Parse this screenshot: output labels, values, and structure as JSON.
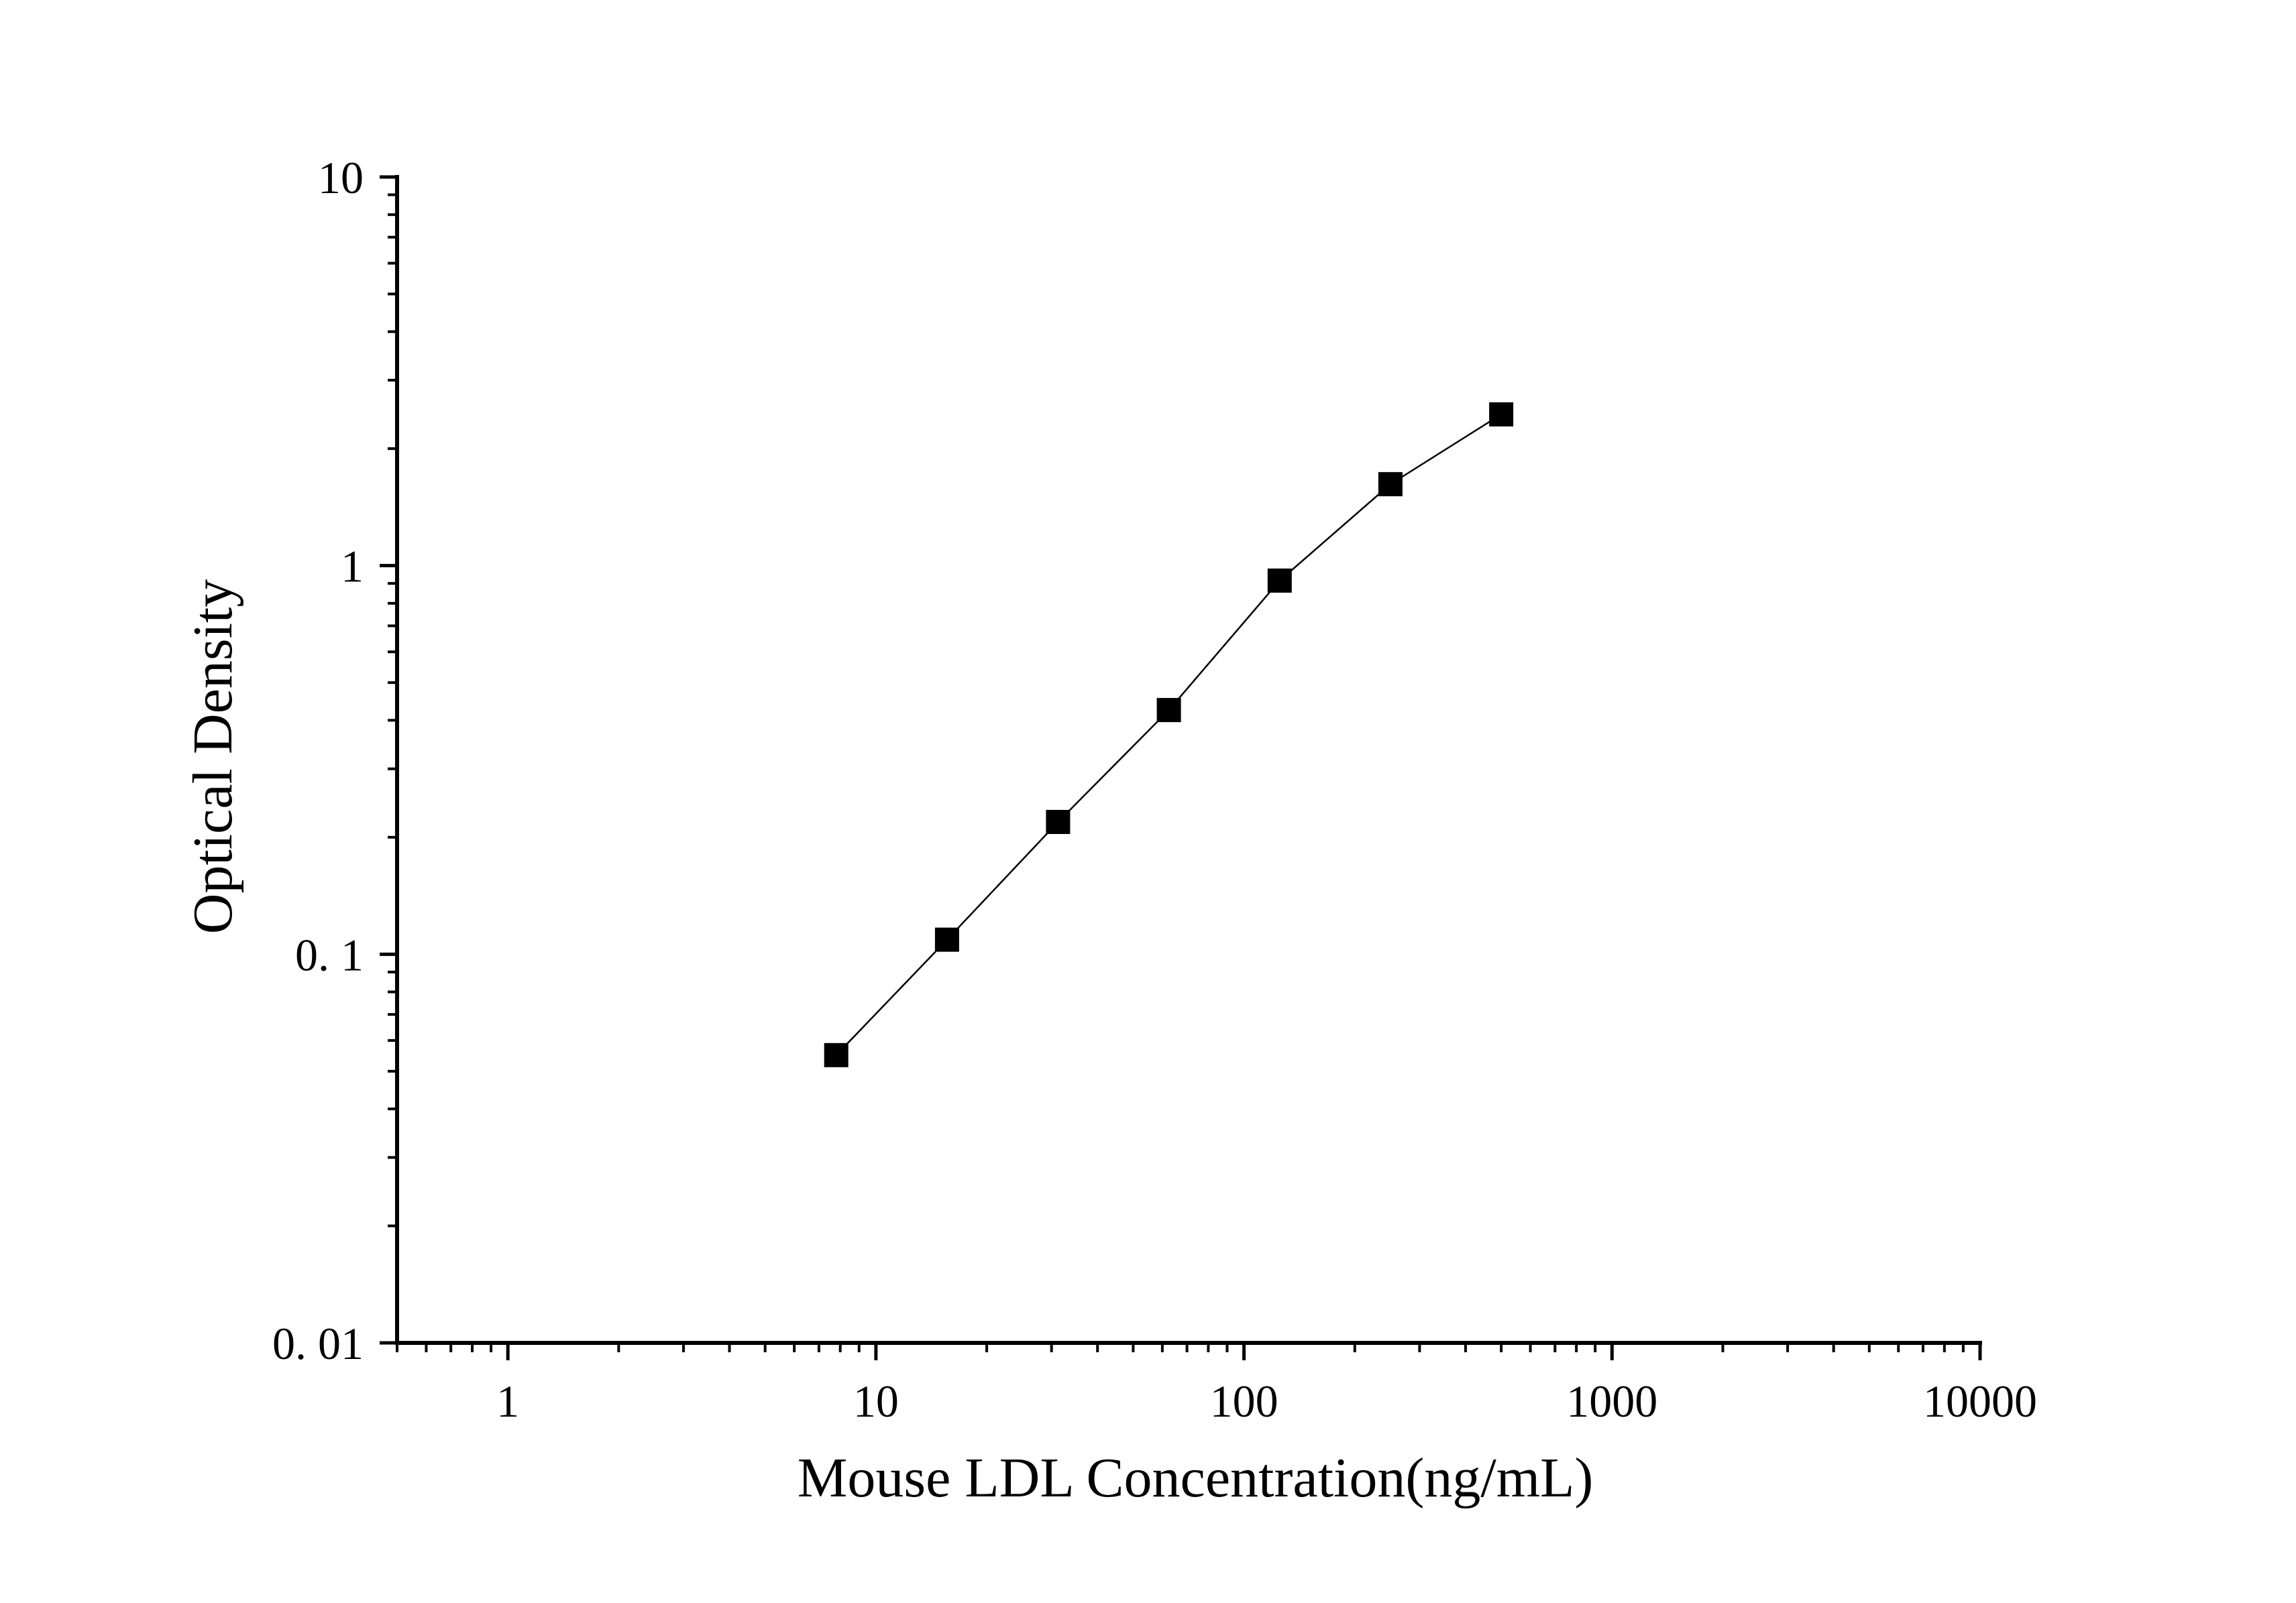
{
  "chart_data": {
    "type": "line",
    "title": "",
    "xlabel": "Mouse LDL Concentration(ng/mL)",
    "ylabel": "Optical Density",
    "x_scale": "log",
    "y_scale": "log",
    "xlim": [
      0.5,
      10000
    ],
    "ylim": [
      0.01,
      10
    ],
    "x_tick_values": [
      1,
      10,
      100,
      1000,
      10000
    ],
    "x_tick_labels": [
      "1",
      "10",
      "100",
      "1000",
      "10000"
    ],
    "y_tick_values": [
      0.01,
      0.1,
      1,
      10
    ],
    "y_tick_labels": [
      "0. 01",
      "0. 1",
      "1",
      "10"
    ],
    "grid": false,
    "legend": "none",
    "marker": "square",
    "series_color": "#000000",
    "series": [
      {
        "x": [
          7.8,
          15.6,
          31.25,
          62.5,
          125,
          250,
          500
        ],
        "y": [
          0.055,
          0.109,
          0.219,
          0.425,
          0.915,
          1.62,
          2.45
        ]
      }
    ]
  }
}
